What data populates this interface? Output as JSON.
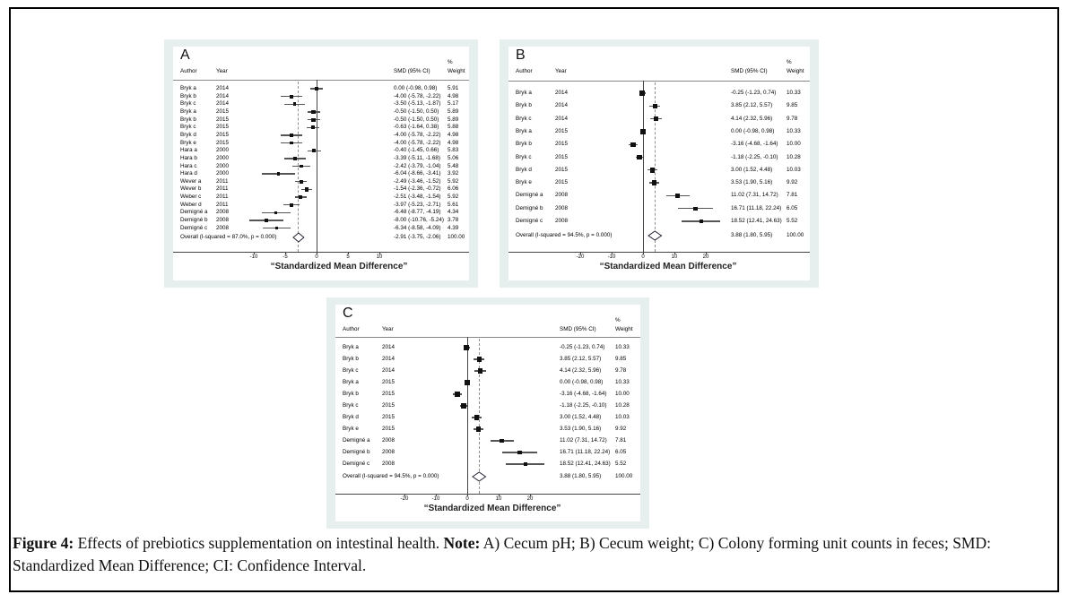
{
  "caption": {
    "figure_label": "Figure 4:",
    "description": " Effects of prebiotics supplementation on intestinal health. ",
    "note_label": "Note:",
    "note_text": " A) Cecum pH; B) Cecum weight; C) Colony forming unit counts in feces; SMD: Standardized Mean Difference; CI: Confidence Interval."
  },
  "colors": {
    "panel_bg": "#e6efee",
    "plot_bg": "#ffffff",
    "marker": "#111111",
    "ci_line": "#555555",
    "zero_line": "#444444",
    "overall_dash": "#909090",
    "divider": "#888888",
    "diamond_stroke": "#222233",
    "frame_border": "#000000"
  },
  "chart_data": [
    {
      "type": "forest",
      "panel_letter": "A",
      "headers": {
        "author": "Author",
        "year": "Year",
        "smd": "SMD (95% CI)",
        "weight_top": "%",
        "weight": "Weight"
      },
      "xlabel": "“Standardized Mean Difference”",
      "x_ticks": [
        -10,
        -5,
        0,
        5,
        10
      ],
      "studies": [
        {
          "author": "Bryk a",
          "year": "2014",
          "est": 0.0,
          "lo": -0.98,
          "hi": 0.98,
          "label": "0.00 (-0.98, 0.98)",
          "weight": "5.91"
        },
        {
          "author": "Bryk b",
          "year": "2014",
          "est": -4.0,
          "lo": -5.78,
          "hi": -2.22,
          "label": "-4.00 (-5.78, -2.22)",
          "weight": "4.98"
        },
        {
          "author": "Bryk c",
          "year": "2014",
          "est": -3.5,
          "lo": -5.13,
          "hi": -1.87,
          "label": "-3.50 (-5.13, -1.87)",
          "weight": "5.17"
        },
        {
          "author": "Bryk a",
          "year": "2015",
          "est": -0.5,
          "lo": -1.5,
          "hi": 0.5,
          "label": "-0.50 (-1.50, 0.50)",
          "weight": "5.89"
        },
        {
          "author": "Bryk b",
          "year": "2015",
          "est": -0.5,
          "lo": -1.5,
          "hi": 0.5,
          "label": "-0.50 (-1.50, 0.50)",
          "weight": "5.89"
        },
        {
          "author": "Bryk c",
          "year": "2015",
          "est": -0.63,
          "lo": -1.64,
          "hi": 0.38,
          "label": "-0.63 (-1.64, 0.38)",
          "weight": "5.88"
        },
        {
          "author": "Bryk d",
          "year": "2015",
          "est": -4.0,
          "lo": -5.78,
          "hi": -2.22,
          "label": "-4.00 (-5.78, -2.22)",
          "weight": "4.98"
        },
        {
          "author": "Bryk e",
          "year": "2015",
          "est": -4.0,
          "lo": -5.78,
          "hi": -2.22,
          "label": "-4.00 (-5.78, -2.22)",
          "weight": "4.98"
        },
        {
          "author": "Hara a",
          "year": "2000",
          "est": -0.4,
          "lo": -1.45,
          "hi": 0.66,
          "label": "-0.40 (-1.45, 0.66)",
          "weight": "5.83"
        },
        {
          "author": "Hara b",
          "year": "2000",
          "est": -3.39,
          "lo": -5.11,
          "hi": -1.68,
          "label": "-3.39 (-5.11, -1.68)",
          "weight": "5.06"
        },
        {
          "author": "Hara c",
          "year": "2000",
          "est": -2.42,
          "lo": -3.79,
          "hi": -1.04,
          "label": "-2.42 (-3.79, -1.04)",
          "weight": "5.48"
        },
        {
          "author": "Hara d",
          "year": "2000",
          "est": -6.04,
          "lo": -8.66,
          "hi": -3.41,
          "label": "-6.04 (-8.66, -3.41)",
          "weight": "3.92"
        },
        {
          "author": "Wever a",
          "year": "2011",
          "est": -2.49,
          "lo": -3.46,
          "hi": -1.52,
          "label": "-2.49 (-3.46, -1.52)",
          "weight": "5.92"
        },
        {
          "author": "Wever b",
          "year": "2011",
          "est": -1.54,
          "lo": -2.36,
          "hi": -0.72,
          "label": "-1.54 (-2.36, -0.72)",
          "weight": "6.06"
        },
        {
          "author": "Weber c",
          "year": "2011",
          "est": -2.51,
          "lo": -3.48,
          "hi": -1.54,
          "label": "-2.51 (-3.48, -1.54)",
          "weight": "5.92"
        },
        {
          "author": "Weber d",
          "year": "2011",
          "est": -3.97,
          "lo": -5.23,
          "hi": -2.71,
          "label": "-3.97 (-5.23, -2.71)",
          "weight": "5.61"
        },
        {
          "author": "Demigné a",
          "year": "2008",
          "est": -6.48,
          "lo": -8.77,
          "hi": -4.19,
          "label": "-6.48 (-8.77, -4.19)",
          "weight": "4.34"
        },
        {
          "author": "Demigné b",
          "year": "2008",
          "est": -8.0,
          "lo": -10.76,
          "hi": -5.24,
          "label": "-8.00 (-10.76, -5.24)",
          "weight": "3.78"
        },
        {
          "author": "Demigné c",
          "year": "2008",
          "est": -6.34,
          "lo": -8.58,
          "hi": -4.09,
          "label": "-6.34 (-8.58, -4.09)",
          "weight": "4.39"
        }
      ],
      "overall": {
        "label": "Overall  (I-squared = 87.0%, p = 0.000)",
        "est": -2.91,
        "lo": -3.75,
        "hi": -2.06,
        "ci_label": "-2.91 (-3.75, -2.06)",
        "weight": "100.00"
      }
    },
    {
      "type": "forest",
      "panel_letter": "B",
      "headers": {
        "author": "Author",
        "year": "Year",
        "smd": "SMD (95% CI)",
        "weight_top": "%",
        "weight": "Weight"
      },
      "xlabel": "“Standardized Mean Difference”",
      "x_ticks": [
        -20,
        -10,
        0,
        10,
        20
      ],
      "studies": [
        {
          "author": "Bryk a",
          "year": "2014",
          "est": -0.25,
          "lo": -1.23,
          "hi": 0.74,
          "label": "-0.25 (-1.23, 0.74)",
          "weight": "10.33"
        },
        {
          "author": "Bryk b",
          "year": "2014",
          "est": 3.85,
          "lo": 2.12,
          "hi": 5.57,
          "label": "3.85 (2.12, 5.57)",
          "weight": "9.85"
        },
        {
          "author": "Bryk c",
          "year": "2014",
          "est": 4.14,
          "lo": 2.32,
          "hi": 5.96,
          "label": "4.14 (2.32, 5.96)",
          "weight": "9.78"
        },
        {
          "author": "Bryk a",
          "year": "2015",
          "est": 0.0,
          "lo": -0.98,
          "hi": 0.98,
          "label": "0.00 (-0.98, 0.98)",
          "weight": "10.33"
        },
        {
          "author": "Bryk b",
          "year": "2015",
          "est": -3.16,
          "lo": -4.68,
          "hi": -1.64,
          "label": "-3.16 (-4.68, -1.64)",
          "weight": "10.00"
        },
        {
          "author": "Bryk c",
          "year": "2015",
          "est": -1.18,
          "lo": -2.25,
          "hi": -0.1,
          "label": "-1.18 (-2.25, -0.10)",
          "weight": "10.28"
        },
        {
          "author": "Bryk d",
          "year": "2015",
          "est": 3.0,
          "lo": 1.52,
          "hi": 4.48,
          "label": "3.00 (1.52, 4.48)",
          "weight": "10.03"
        },
        {
          "author": "Bryk e",
          "year": "2015",
          "est": 3.53,
          "lo": 1.9,
          "hi": 5.16,
          "label": "3.53 (1.90, 5.16)",
          "weight": "9.92"
        },
        {
          "author": "Demigné a",
          "year": "2008",
          "est": 11.02,
          "lo": 7.31,
          "hi": 14.72,
          "label": "11.02 (7.31, 14.72)",
          "weight": "7.81"
        },
        {
          "author": "Demigné b",
          "year": "2008",
          "est": 16.71,
          "lo": 11.18,
          "hi": 22.24,
          "label": "16.71 (11.18, 22.24)",
          "weight": "6.05"
        },
        {
          "author": "Demigné c",
          "year": "2008",
          "est": 18.52,
          "lo": 12.41,
          "hi": 24.63,
          "label": "18.52 (12.41, 24.63)",
          "weight": "5.52"
        }
      ],
      "overall": {
        "label": "Overall  (I-squared = 94.5%, p = 0.000)",
        "est": 3.88,
        "lo": 1.8,
        "hi": 5.95,
        "ci_label": "3.88 (1.80, 5.95)",
        "weight": "100.00"
      }
    },
    {
      "type": "forest",
      "panel_letter": "C",
      "headers": {
        "author": "Author",
        "year": "Year",
        "smd": "SMD (95% CI)",
        "weight_top": "%",
        "weight": "Weight"
      },
      "xlabel": "“Standardized Mean Difference”",
      "x_ticks": [
        -20,
        -10,
        0,
        10,
        20
      ],
      "studies": [
        {
          "author": "Bryk a",
          "year": "2014",
          "est": -0.25,
          "lo": -1.23,
          "hi": 0.74,
          "label": "-0.25 (-1.23, 0.74)",
          "weight": "10.33"
        },
        {
          "author": "Bryk b",
          "year": "2014",
          "est": 3.85,
          "lo": 2.12,
          "hi": 5.57,
          "label": "3.85 (2.12, 5.57)",
          "weight": "9.85"
        },
        {
          "author": "Bryk c",
          "year": "2014",
          "est": 4.14,
          "lo": 2.32,
          "hi": 5.96,
          "label": "4.14 (2.32, 5.96)",
          "weight": "9.78"
        },
        {
          "author": "Bryk a",
          "year": "2015",
          "est": 0.0,
          "lo": -0.98,
          "hi": 0.98,
          "label": "0.00 (-0.98, 0.98)",
          "weight": "10.33"
        },
        {
          "author": "Bryk b",
          "year": "2015",
          "est": -3.16,
          "lo": -4.68,
          "hi": -1.64,
          "label": "-3.16 (-4.68, -1.64)",
          "weight": "10.00"
        },
        {
          "author": "Bryk c",
          "year": "2015",
          "est": -1.18,
          "lo": -2.25,
          "hi": -0.1,
          "label": "-1.18 (-2.25, -0.10)",
          "weight": "10.28"
        },
        {
          "author": "Bryk d",
          "year": "2015",
          "est": 3.0,
          "lo": 1.52,
          "hi": 4.48,
          "label": "3.00 (1.52, 4.48)",
          "weight": "10.03"
        },
        {
          "author": "Bryk e",
          "year": "2015",
          "est": 3.53,
          "lo": 1.9,
          "hi": 5.16,
          "label": "3.53 (1.90, 5.16)",
          "weight": "9.92"
        },
        {
          "author": "Demigné a",
          "year": "2008",
          "est": 11.02,
          "lo": 7.31,
          "hi": 14.72,
          "label": "11.02 (7.31, 14.72)",
          "weight": "7.81"
        },
        {
          "author": "Demigné b",
          "year": "2008",
          "est": 16.71,
          "lo": 11.18,
          "hi": 22.24,
          "label": "16.71 (11.18, 22.24)",
          "weight": "6.05"
        },
        {
          "author": "Demigné c",
          "year": "2008",
          "est": 18.52,
          "lo": 12.41,
          "hi": 24.63,
          "label": "18.52 (12.41, 24.63)",
          "weight": "5.52"
        }
      ],
      "overall": {
        "label": "Overall  (I-squared = 94.5%, p = 0.000)",
        "est": 3.88,
        "lo": 1.8,
        "hi": 5.95,
        "ci_label": "3.88 (1.80, 5.95)",
        "weight": "100.00"
      }
    }
  ]
}
